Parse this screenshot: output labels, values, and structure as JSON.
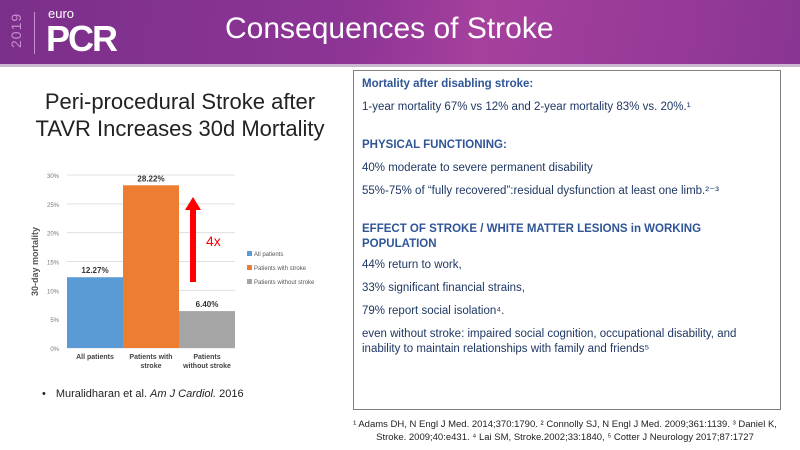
{
  "header": {
    "year": "2019",
    "logo_top": "euro",
    "logo_main": "PCR",
    "title": "Consequences of Stroke"
  },
  "subtitle": "Peri-procedural Stroke after TAVR Increases 30d Mortality",
  "chart_data": {
    "type": "bar",
    "categories": [
      "All patients",
      "Patients with stroke",
      "Patients without stroke"
    ],
    "values": [
      12.27,
      28.22,
      6.4
    ],
    "value_labels": [
      "12.27%",
      "28.22%",
      "6.40%"
    ],
    "colors": [
      "#5b9bd5",
      "#ed7d31",
      "#a5a5a5"
    ],
    "ylabel": "30-day mortality",
    "ylim": [
      0,
      30
    ],
    "yticks": [
      "0%",
      "5%",
      "10%",
      "15%",
      "20%",
      "25%",
      "30%"
    ],
    "legend": [
      "All patients",
      "Patients with stroke",
      "Patients without stroke"
    ],
    "legend_position": "right",
    "annotation": "4x",
    "grid": true
  },
  "citation": {
    "bullet": "•",
    "authors": "Muralidharan  et al.",
    "journal": "Am J Cardiol.",
    "year": "2016"
  },
  "box": {
    "mortality_heading": "Mortality after disabling stroke:",
    "mortality_text": "1-year mortality 67% vs 12% and 2-year mortality 83% vs. 20%.¹",
    "physical_heading": "PHYSICAL FUNCTIONING:",
    "physical_1": "40% moderate to severe permanent disability",
    "physical_2": "55%-75% of “fully recovered”:residual dysfunction at least one limb.²⁻³",
    "effect_heading": "EFFECT OF STROKE / WHITE MATTER LESIONS in WORKING POPULATION",
    "effect_1": "44% return to work,",
    "effect_2": "33% significant financial strains,",
    "effect_3": "79% report social isolation⁴.",
    "effect_4": "even without stroke: impaired social cognition, occupational disability, and inability to maintain relationships with family and friends⁵"
  },
  "references": "¹ Adams DH, N Engl J Med. 2014;370:1790. ² Connolly SJ, N Engl J  Med. 2009;361:1139. ³ Daniel K, Stroke. 2009;40:e431. ⁴ Lai SM, Stroke.2002;33:1840, ⁵ Cotter J Neurology 2017;87:1727"
}
